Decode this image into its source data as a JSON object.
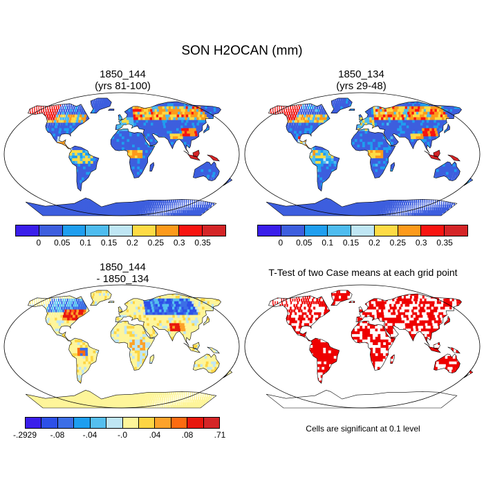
{
  "title": "SON H2OCAN (mm)",
  "panels": [
    {
      "title_line1": "1850_144",
      "title_line2": "(yrs 81-100)",
      "colors": [
        "#3a1eea",
        "#3d5ede",
        "#1f9eef",
        "#4ebcef",
        "#bfe6f4",
        "#fedb45",
        "#fd9a1b",
        "#f81410",
        "#d42527"
      ],
      "labels": [
        "0",
        "0.05",
        "0.1",
        "0.15",
        "0.2",
        "0.25",
        "0.3",
        "0.35"
      ]
    },
    {
      "title_line1": "1850_134",
      "title_line2": "(yrs 29-48)",
      "colors": [
        "#3a1eea",
        "#3d5ede",
        "#1f9eef",
        "#4ebcef",
        "#bfe6f4",
        "#fedb45",
        "#fd9a1b",
        "#f81410",
        "#d42527"
      ],
      "labels": [
        "0",
        "0.05",
        "0.1",
        "0.15",
        "0.2",
        "0.25",
        "0.3",
        "0.35"
      ]
    },
    {
      "title_line1": "1850_144",
      "title_line2": "- 1850_134",
      "colors": [
        "#3a1eea",
        "#2d50e8",
        "#3c6ee6",
        "#1e9ef0",
        "#55bfef",
        "#bfe6f4",
        "#fef59a",
        "#fed543",
        "#fda22a",
        "#fd6b11",
        "#e8170d",
        "#d42527"
      ],
      "labels": [
        "-.2929",
        "-.08",
        "-.04",
        "-.0",
        ".04",
        ".08",
        ".71"
      ]
    },
    {
      "title_line1": "T-Test of two Case means at each grid point",
      "note": "Cells are significant at 0.1 level",
      "significant_color": "#ee0000"
    }
  ]
}
